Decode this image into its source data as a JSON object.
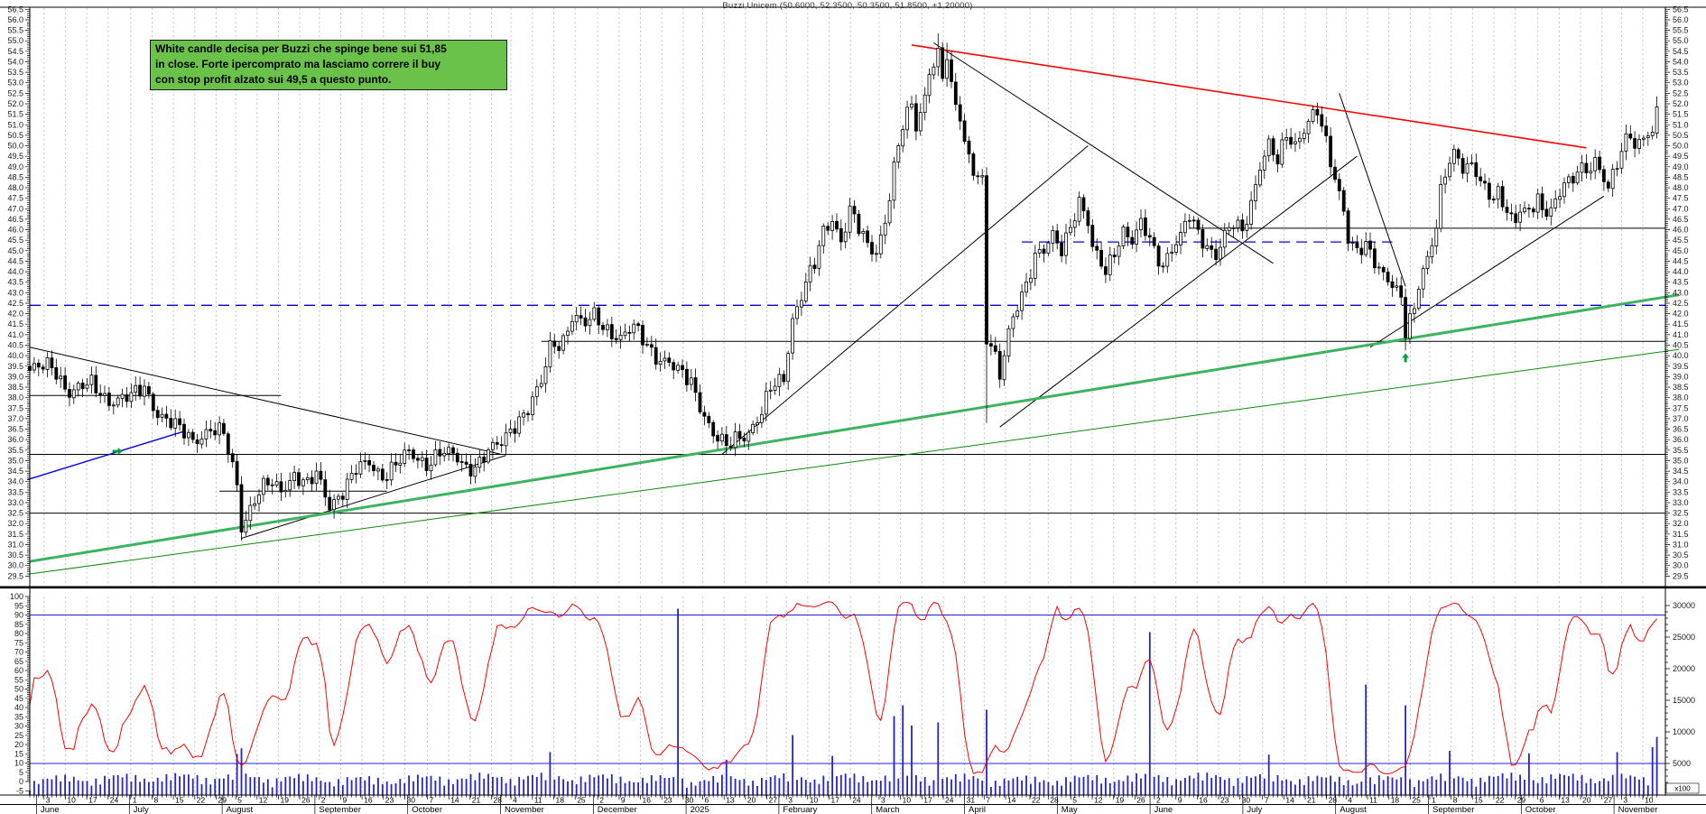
{
  "title": "Buzzi Unicem (50.6000, 52.3500, 50.3500, 51.8500, +1.20000)",
  "annotation": {
    "line1": "White candle decisa per Buzzi che spinge bene sui 51,85",
    "line2": "in close. Forte ipercomprato ma lasciamo correre il buy",
    "line3": "con stop profit alzato sui 49,5 a questo punto.",
    "bg_color": "#6bc24a",
    "border_color": "#1c1c1c"
  },
  "chart_data": {
    "type": "candlestick+oscillator+volume",
    "instrument": "Buzzi Unicem",
    "last_candle": {
      "open": 50.6,
      "high": 52.35,
      "low": 50.35,
      "close": 51.85,
      "change": "+1.20"
    },
    "price_axis": {
      "min": 29.0,
      "max": 56.6,
      "label_step": 0.5,
      "first_label": 29.5,
      "last_label": 56.5,
      "minor_step": 0.1
    },
    "oscillator_axis": {
      "min": -5,
      "max": 100,
      "label_step": 5,
      "extra_label": -5,
      "upper_band": 90
    },
    "volume_axis": {
      "labels": [
        30000,
        25000,
        20000,
        15000,
        10000,
        5000
      ],
      "unit": "x100",
      "line_level": 5000
    },
    "x_axis": {
      "start": "June 2024",
      "end": "November 2025",
      "months": [
        {
          "label": "June",
          "days": [
            3,
            10,
            17,
            24
          ]
        },
        {
          "label": "July",
          "days": [
            1,
            8,
            15,
            22,
            29
          ]
        },
        {
          "label": "August",
          "days": [
            5,
            12,
            19,
            26
          ]
        },
        {
          "label": "September",
          "days": [
            2,
            9,
            16,
            23,
            30
          ]
        },
        {
          "label": "October",
          "days": [
            7,
            14,
            21,
            28
          ]
        },
        {
          "label": "November",
          "days": [
            4,
            11,
            18,
            25
          ]
        },
        {
          "label": "December",
          "days": [
            2,
            9,
            16,
            23,
            30
          ]
        },
        {
          "label": "2025",
          "days": [
            6,
            13,
            20,
            27
          ]
        },
        {
          "label": "February",
          "days": [
            3,
            10,
            17,
            24
          ]
        },
        {
          "label": "March",
          "days": [
            3,
            10,
            17,
            24,
            31
          ]
        },
        {
          "label": "April",
          "days": [
            7,
            14,
            22,
            28
          ]
        },
        {
          "label": "May",
          "days": [
            5,
            12,
            19,
            26
          ]
        },
        {
          "label": "June",
          "days": [
            2,
            9,
            16,
            23,
            30
          ]
        },
        {
          "label": "July",
          "days": [
            7,
            14,
            21,
            28
          ]
        },
        {
          "label": "August",
          "days": [
            4,
            11,
            18,
            25
          ]
        },
        {
          "label": "September",
          "days": [
            1,
            8,
            15,
            22,
            29
          ]
        },
        {
          "label": "October",
          "days": [
            6,
            13,
            20,
            27
          ]
        },
        {
          "label": "November",
          "days": [
            3,
            10
          ]
        }
      ]
    },
    "price_path_anchors": [
      [
        0,
        39.3
      ],
      [
        5,
        39.5
      ],
      [
        9,
        38.3
      ],
      [
        14,
        38.6
      ],
      [
        18,
        37.9
      ],
      [
        23,
        38.0
      ],
      [
        26,
        38.5
      ],
      [
        29,
        37.3
      ],
      [
        33,
        36.6
      ],
      [
        37,
        36.0
      ],
      [
        41,
        36.5
      ],
      [
        44,
        36.2
      ],
      [
        47,
        33.9
      ],
      [
        48,
        31.9
      ],
      [
        51,
        33.2
      ],
      [
        54,
        33.9
      ],
      [
        57,
        33.6
      ],
      [
        60,
        34.4
      ],
      [
        63,
        33.8
      ],
      [
        65,
        34.3
      ],
      [
        68,
        32.9
      ],
      [
        71,
        33.6
      ],
      [
        74,
        34.5
      ],
      [
        77,
        34.9
      ],
      [
        80,
        34.3
      ],
      [
        83,
        34.8
      ],
      [
        86,
        35.3
      ],
      [
        90,
        34.9
      ],
      [
        93,
        35.4
      ],
      [
        96,
        35.2
      ],
      [
        99,
        34.7
      ],
      [
        101,
        34.8
      ],
      [
        104,
        35.4
      ],
      [
        107,
        35.8
      ],
      [
        110,
        36.8
      ],
      [
        113,
        37.5
      ],
      [
        116,
        38.6
      ],
      [
        118,
        40.4
      ],
      [
        121,
        40.8
      ],
      [
        123,
        41.9
      ],
      [
        126,
        41.4
      ],
      [
        128,
        41.9
      ],
      [
        131,
        41.3
      ],
      [
        134,
        40.8
      ],
      [
        137,
        41.3
      ],
      [
        140,
        40.6
      ],
      [
        142,
        40.0
      ],
      [
        145,
        39.6
      ],
      [
        147,
        39.2
      ],
      [
        150,
        38.8
      ],
      [
        153,
        37.2
      ],
      [
        155,
        36.2
      ],
      [
        158,
        35.6
      ],
      [
        160,
        36.1
      ],
      [
        163,
        36.4
      ],
      [
        166,
        37.2
      ],
      [
        168,
        38.4
      ],
      [
        171,
        39.0
      ],
      [
        173,
        41.8
      ],
      [
        176,
        43.4
      ],
      [
        178,
        44.3
      ],
      [
        180,
        45.9
      ],
      [
        182,
        46.6
      ],
      [
        184,
        45.5
      ],
      [
        186,
        46.9
      ],
      [
        188,
        46.0
      ],
      [
        190,
        45.2
      ],
      [
        192,
        45.0
      ],
      [
        194,
        46.5
      ],
      [
        196,
        48.9
      ],
      [
        198,
        50.9
      ],
      [
        200,
        51.9
      ],
      [
        201,
        50.9
      ],
      [
        203,
        52.4
      ],
      [
        204,
        53.7
      ],
      [
        206,
        54.3
      ],
      [
        207,
        53.3
      ],
      [
        208,
        54.1
      ],
      [
        209,
        52.6
      ],
      [
        211,
        51.3
      ],
      [
        212,
        50.2
      ],
      [
        214,
        49.0
      ],
      [
        216,
        48.3
      ],
      [
        217,
        40.8
      ],
      [
        219,
        39.8
      ],
      [
        220,
        38.9
      ],
      [
        222,
        41.2
      ],
      [
        224,
        42.6
      ],
      [
        226,
        43.4
      ],
      [
        228,
        44.6
      ],
      [
        230,
        44.9
      ],
      [
        232,
        45.8
      ],
      [
        234,
        45.2
      ],
      [
        236,
        46.2
      ],
      [
        238,
        47.2
      ],
      [
        240,
        46.2
      ],
      [
        241,
        45.1
      ],
      [
        244,
        44.2
      ],
      [
        246,
        45.0
      ],
      [
        248,
        45.8
      ],
      [
        250,
        45.3
      ],
      [
        252,
        46.3
      ],
      [
        254,
        45.8
      ],
      [
        255,
        45.1
      ],
      [
        257,
        44.3
      ],
      [
        259,
        44.9
      ],
      [
        261,
        45.6
      ],
      [
        263,
        46.8
      ],
      [
        265,
        46.0
      ],
      [
        267,
        45.2
      ],
      [
        269,
        44.6
      ],
      [
        271,
        45.6
      ],
      [
        273,
        46.4
      ],
      [
        275,
        46.1
      ],
      [
        277,
        47.3
      ],
      [
        279,
        48.9
      ],
      [
        281,
        49.9
      ],
      [
        283,
        49.3
      ],
      [
        285,
        50.7
      ],
      [
        287,
        50.1
      ],
      [
        290,
        51.0
      ],
      [
        292,
        51.6
      ],
      [
        294,
        50.2
      ],
      [
        296,
        48.6
      ],
      [
        298,
        47.0
      ],
      [
        299,
        45.5
      ],
      [
        301,
        44.8
      ],
      [
        303,
        45.2
      ],
      [
        305,
        44.6
      ],
      [
        307,
        44.0
      ],
      [
        309,
        43.4
      ],
      [
        311,
        42.6
      ],
      [
        312,
        41.0
      ],
      [
        314,
        42.2
      ],
      [
        315,
        43.5
      ],
      [
        317,
        44.8
      ],
      [
        319,
        46.2
      ],
      [
        320,
        47.8
      ],
      [
        322,
        49.2
      ],
      [
        324,
        49.5
      ],
      [
        325,
        48.9
      ],
      [
        327,
        49.3
      ],
      [
        329,
        48.4
      ],
      [
        330,
        47.9
      ],
      [
        332,
        47.3
      ],
      [
        333,
        47.6
      ],
      [
        335,
        46.9
      ],
      [
        337,
        46.5
      ],
      [
        338,
        47.2
      ],
      [
        340,
        46.8
      ],
      [
        342,
        47.4
      ],
      [
        343,
        46.6
      ],
      [
        345,
        47.0
      ],
      [
        347,
        47.8
      ],
      [
        348,
        48.6
      ],
      [
        350,
        48.2
      ],
      [
        351,
        49.0
      ],
      [
        353,
        48.5
      ],
      [
        355,
        49.3
      ],
      [
        356,
        48.8
      ],
      [
        358,
        48.3
      ],
      [
        360,
        49.1
      ],
      [
        361,
        49.9
      ],
      [
        363,
        50.3
      ],
      [
        364,
        49.9
      ],
      [
        366,
        50.3
      ],
      [
        368,
        50.65
      ],
      [
        369,
        51.85
      ]
    ],
    "special_candles": [
      {
        "i": 206,
        "high": 55.35
      },
      {
        "i": 208,
        "high": 54.9
      },
      {
        "i": 217,
        "low": 36.8
      },
      {
        "i": 312,
        "low": 40.25
      },
      {
        "i": 369,
        "open": 50.6,
        "high": 52.35,
        "low": 50.35,
        "close": 51.85
      }
    ],
    "volume_spikes": {
      "47": 6500,
      "48": 7400,
      "118": 6800,
      "147": 29500,
      "158": 5600,
      "173": 9500,
      "182": 6200,
      "196": 12500,
      "198": 14200,
      "200": 11000,
      "206": 11500,
      "217": 13500,
      "254": 25800,
      "281": 6400,
      "303": 17500,
      "312": 14200,
      "322": 7000,
      "340": 6600,
      "360": 6800,
      "368": 7600,
      "369": 9200
    },
    "horizontal_lines": [
      {
        "price": 42.4,
        "d1": 0,
        "d2": 371,
        "color": "#0000dd",
        "dash": "12,7",
        "w": 1.3,
        "name": "blue-dashed-42.5"
      },
      {
        "price": 45.42,
        "d1": 225,
        "d2": 309,
        "color": "#0000dd",
        "dash": "12,7",
        "w": 1.3,
        "name": "blue-dashed-45.5"
      },
      {
        "price": 40.68,
        "d1": 116,
        "d2": 371,
        "color": "#000000",
        "w": 1,
        "name": "support-40.65"
      },
      {
        "price": 35.3,
        "d1": 0,
        "d2": 371,
        "color": "#000000",
        "w": 1,
        "name": "support-35.3"
      },
      {
        "price": 32.5,
        "d1": 0,
        "d2": 371,
        "color": "#000000",
        "w": 1,
        "name": "support-32.5"
      },
      {
        "price": 38.1,
        "d1": 0,
        "d2": 57,
        "color": "#000000",
        "w": 1,
        "name": "support-38.1"
      },
      {
        "price": 33.55,
        "d1": 43,
        "d2": 81,
        "color": "#000000",
        "w": 1,
        "name": "support-33.55"
      },
      {
        "price": 46.07,
        "d1": 263,
        "d2": 371,
        "color": "#000000",
        "w": 1,
        "name": "support-46.1"
      }
    ],
    "trend_lines": [
      {
        "d1": 0,
        "p1": 40.4,
        "d2": 107,
        "p2": 35.3,
        "color": "#000000",
        "w": 1,
        "name": "2024-descending-trendline"
      },
      {
        "d1": 48,
        "p1": 31.3,
        "d2": 108,
        "p2": 35.25,
        "color": "#000000",
        "w": 1,
        "name": "2024-ascending-trendline"
      },
      {
        "d1": 157,
        "p1": 35.3,
        "d2": 240,
        "p2": 50.0,
        "color": "#000000",
        "w": 1,
        "name": "jan2025-rally-trendline"
      },
      {
        "d1": 220,
        "p1": 36.6,
        "d2": 301,
        "p2": 49.5,
        "color": "#000000",
        "w": 1,
        "name": "apr2025-rally-trendline"
      },
      {
        "d1": 205,
        "p1": 54.9,
        "d2": 282,
        "p2": 44.4,
        "color": "#000000",
        "w": 1,
        "name": "mar2025-peak-descending-line"
      },
      {
        "d1": 297,
        "p1": 52.5,
        "d2": 312,
        "p2": 43.3,
        "color": "#000000",
        "w": 1,
        "name": "jul-aug-2025-drop-line"
      },
      {
        "d1": 304,
        "p1": 40.4,
        "d2": 357,
        "p2": 47.6,
        "color": "#000000",
        "w": 1,
        "name": "aug2025-recovery-trendline"
      },
      {
        "d1": 200,
        "p1": 54.8,
        "d2": 353,
        "p2": 49.9,
        "color": "#ff0000",
        "w": 1.6,
        "name": "red-resistance-trendline"
      },
      {
        "d1": -0.5,
        "p1": 34.1,
        "d2": 35,
        "p2": 36.4,
        "color": "#0000ff",
        "w": 1.4,
        "name": "blue-2024-support-line"
      },
      {
        "d1": 0,
        "p1": 30.2,
        "d2": 374,
        "p2": 42.9,
        "color": "#3cb45f",
        "w": 3,
        "name": "green-major-uptrend-line"
      },
      {
        "d1": 0,
        "p1": 29.6,
        "d2": 374,
        "p2": 40.3,
        "color": "#0a8a0a",
        "w": 1,
        "name": "green-minor-uptrend-line"
      }
    ],
    "markers": [
      {
        "day": 20,
        "price": 35.45,
        "shape": "right-arrow",
        "color": "#00a040",
        "name": "green-right-arrow-marker"
      },
      {
        "day": 312,
        "price": 39.9,
        "shape": "up-arrow",
        "color": "#00a040",
        "name": "green-buy-arrow-marker"
      }
    ],
    "colors": {
      "grid": "#c4c4c4",
      "candle_up_fill": "#ffffff",
      "candle_down_fill": "#000000",
      "candle_stroke": "#000000",
      "oscillator_line": "#ff0000",
      "volume_bars": "#2424c8",
      "panel_blue_lines": "#2020dd",
      "axis_text": "#1a1a1a"
    }
  }
}
